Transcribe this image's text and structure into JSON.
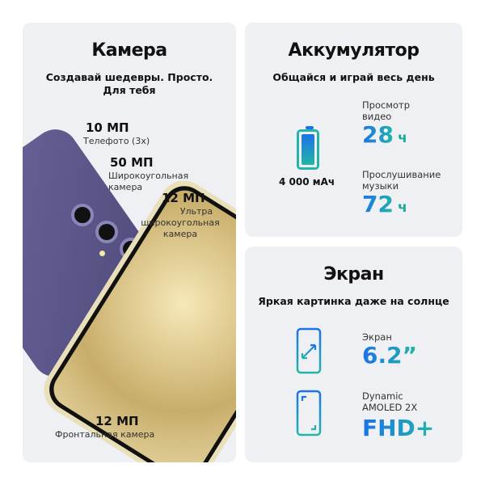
{
  "camera": {
    "title": "Камера",
    "subtitle_line1": "Создавай шедевры. Просто.",
    "subtitle_line2": "Для тебя",
    "tele": {
      "value": "10 МП",
      "label": "Телефото (3x)"
    },
    "wide": {
      "value": "50 МП",
      "label_line1": "Широкоугольная",
      "label_line2": "камера"
    },
    "ultra": {
      "value": "12 МП",
      "label_line1": "Ультра",
      "label_line2": "широкоугольная",
      "label_line3": "камера"
    },
    "front": {
      "value": "12 МП",
      "label": "Фронтальная камера"
    }
  },
  "battery": {
    "title": "Аккумулятор",
    "subtitle": "Общайся и играй весь день",
    "icon": "battery-icon",
    "capacity": "4 000 мАч",
    "video": {
      "label_line1": "Просмотр",
      "label_line2": "видео",
      "value": "28",
      "unit": "ч"
    },
    "music": {
      "label_line1": "Прослушивание",
      "label_line2": "музыки",
      "value": "72",
      "unit": "ч"
    }
  },
  "screen": {
    "title": "Экран",
    "subtitle": "Яркая картинка даже на солнце",
    "size": {
      "icon": "screen-size-icon",
      "label": "Экран",
      "value": "6.2”"
    },
    "display": {
      "icon": "display-icon",
      "label_line1": "Dynamic",
      "label_line2": "AMOLED 2X",
      "value": "FHD+"
    }
  },
  "colors": {
    "accent_blue": "#1a73e8",
    "accent_teal": "#22b5a8",
    "panel": "#eff0f3",
    "phone_violet": "#5e5a8c",
    "phone_cream": "#f1e9c9"
  }
}
